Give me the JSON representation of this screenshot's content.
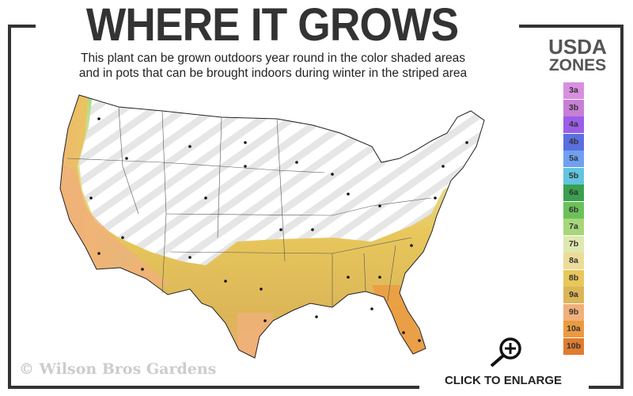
{
  "header": {
    "title": "WHERE IT GROWS",
    "subtitle_line1": "This plant can be grown outdoors year round in the color shaded areas",
    "subtitle_line2": "and in pots that can be brought indoors during winter in the striped area"
  },
  "legend": {
    "title_line1": "USDA",
    "title_line2": "ZONES",
    "zones": [
      {
        "label": "3a",
        "color": "#d98fe0"
      },
      {
        "label": "3b",
        "color": "#c77fd6"
      },
      {
        "label": "4a",
        "color": "#9a5ee8"
      },
      {
        "label": "4b",
        "color": "#5a70e0"
      },
      {
        "label": "5a",
        "color": "#6f9ff0"
      },
      {
        "label": "5b",
        "color": "#62c4de"
      },
      {
        "label": "6a",
        "color": "#3aa050"
      },
      {
        "label": "6b",
        "color": "#6cc05a"
      },
      {
        "label": "7a",
        "color": "#a8d67a"
      },
      {
        "label": "7b",
        "color": "#dfe8b0"
      },
      {
        "label": "8a",
        "color": "#ecdc98"
      },
      {
        "label": "8b",
        "color": "#e8c85c"
      },
      {
        "label": "9a",
        "color": "#dcb558"
      },
      {
        "label": "9b",
        "color": "#f0b07a"
      },
      {
        "label": "10a",
        "color": "#ec9a40"
      },
      {
        "label": "10b",
        "color": "#e07c30"
      }
    ]
  },
  "footer": {
    "copyright": "© Wilson Bros Gardens",
    "enlarge_label": "CLICK TO ENLARGE",
    "enlarge_icon": "zoom-in-magnifier-icon"
  }
}
